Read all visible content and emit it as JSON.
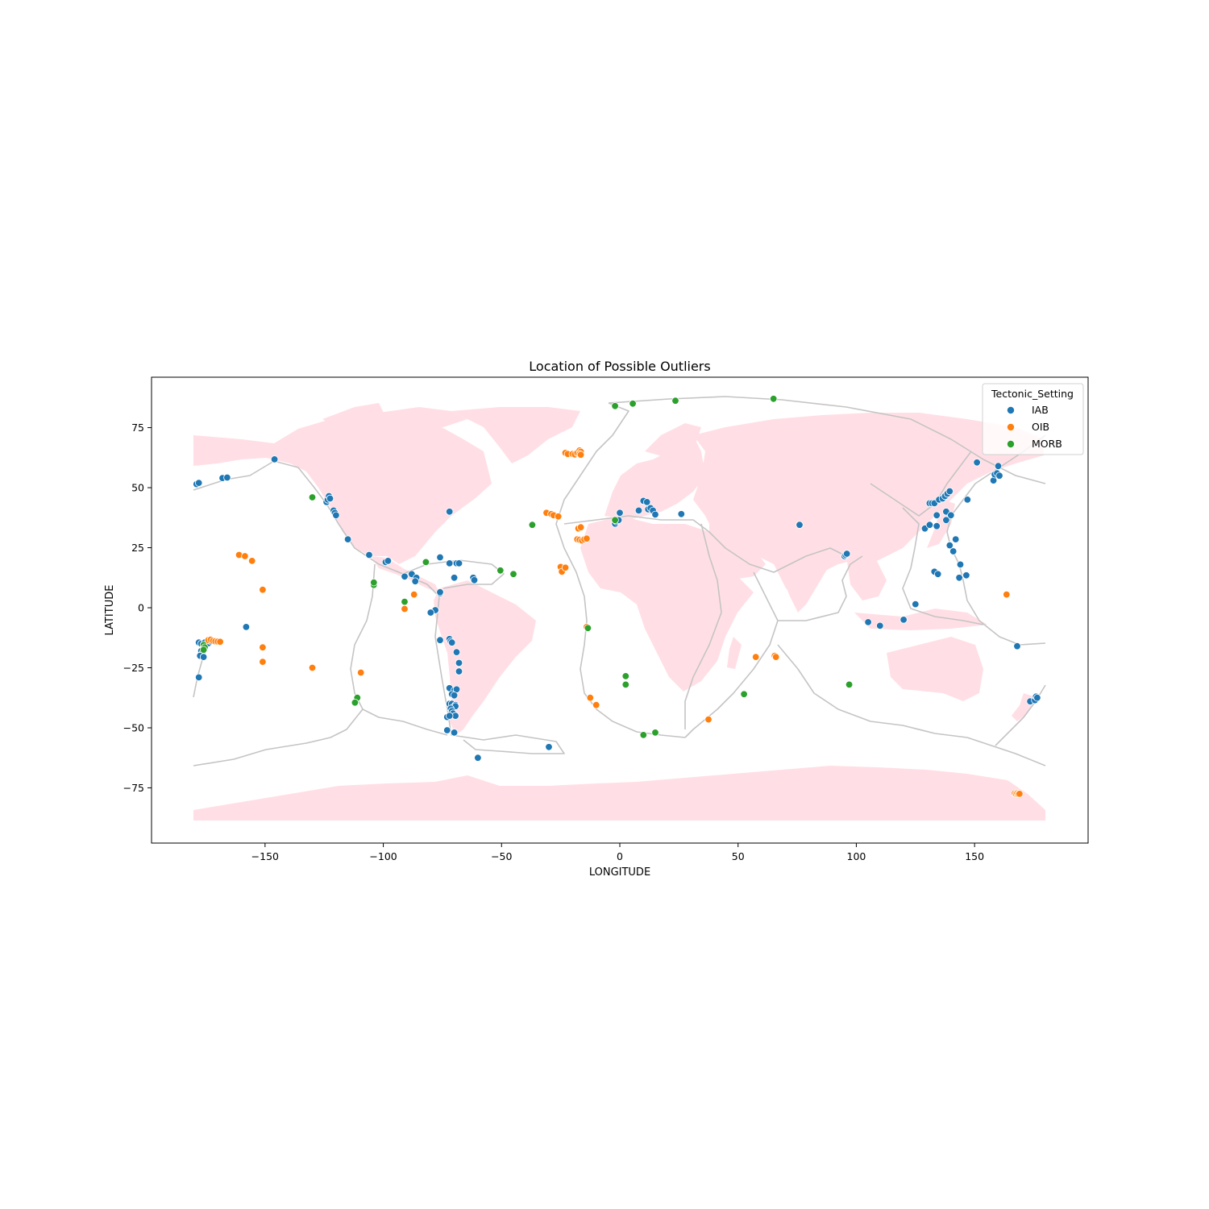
{
  "chart_data": {
    "type": "scatter",
    "title": "Location of Possible Outliers",
    "xlabel": "LONGITUDE",
    "ylabel": "LATITUDE",
    "xlim": [
      -198,
      198
    ],
    "ylim": [
      -98,
      96
    ],
    "xticks": [
      -150,
      -100,
      -50,
      0,
      50,
      100,
      150
    ],
    "yticks": [
      -75,
      -50,
      -25,
      0,
      25,
      50,
      75
    ],
    "xtick_labels": [
      "−150",
      "−100",
      "−50",
      "0",
      "50",
      "100",
      "150"
    ],
    "ytick_labels": [
      "−75",
      "−50",
      "−25",
      "0",
      "25",
      "50",
      "75"
    ],
    "grid": false,
    "legend": {
      "title": "Tectonic_Setting",
      "placement": "upper-right",
      "entries": [
        "IAB",
        "OIB",
        "MORB"
      ]
    },
    "colors": {
      "IAB": "#1f77b4",
      "OIB": "#ff7f0e",
      "MORB": "#2ca02c",
      "land": "#ffdfe5",
      "plate_boundaries": "#c4c4c4"
    },
    "series": [
      {
        "name": "IAB",
        "points": [
          [
            -179,
            51.5
          ],
          [
            -178,
            52
          ],
          [
            -168,
            54
          ],
          [
            -166,
            54.2
          ],
          [
            -146,
            61.8
          ],
          [
            -124,
            44
          ],
          [
            -123.5,
            45
          ],
          [
            -123,
            46.5
          ],
          [
            -122.5,
            45.5
          ],
          [
            -121,
            40.5
          ],
          [
            -120.5,
            39.5
          ],
          [
            -120,
            38.5
          ],
          [
            -115,
            28.5
          ],
          [
            -106,
            22
          ],
          [
            -99,
            19
          ],
          [
            -98,
            19.5
          ],
          [
            -91,
            13
          ],
          [
            -88,
            14
          ],
          [
            -86,
            12.5
          ],
          [
            -86.5,
            11
          ],
          [
            -76,
            21
          ],
          [
            -72,
            18.5
          ],
          [
            -69,
            18.5
          ],
          [
            -68,
            18.5
          ],
          [
            -62,
            12.5
          ],
          [
            -61.5,
            11.5
          ],
          [
            -70,
            12.5
          ],
          [
            -72,
            40
          ],
          [
            -78,
            -1
          ],
          [
            -80,
            -2
          ],
          [
            -76,
            6
          ],
          [
            -76,
            6.5
          ],
          [
            -76,
            -13.5
          ],
          [
            -72,
            -13
          ],
          [
            -71.5,
            -14
          ],
          [
            -71,
            -14.5
          ],
          [
            -69,
            -18.5
          ],
          [
            -68,
            -23
          ],
          [
            -68,
            -26.5
          ],
          [
            -72,
            -33.5
          ],
          [
            -70,
            -34.5
          ],
          [
            -69,
            -34
          ],
          [
            -71,
            -36
          ],
          [
            -70,
            -36.5
          ],
          [
            -72,
            -40
          ],
          [
            -71,
            -40
          ],
          [
            -69.5,
            -40.5
          ],
          [
            -70.5,
            -41.5
          ],
          [
            -69.5,
            -41
          ],
          [
            -71.5,
            -42
          ],
          [
            -71,
            -43
          ],
          [
            -70.5,
            -44
          ],
          [
            -69.5,
            -45
          ],
          [
            -73,
            -45.5
          ],
          [
            -72,
            -45
          ],
          [
            -73,
            -51
          ],
          [
            -70,
            -52
          ],
          [
            -60,
            -62.5
          ],
          [
            -30,
            -58
          ],
          [
            -158,
            -8
          ],
          [
            -178,
            -14.5
          ],
          [
            -177,
            -15
          ],
          [
            -176,
            -15.5
          ],
          [
            -175.5,
            -14.5
          ],
          [
            -174,
            -14.8
          ],
          [
            -173,
            -14
          ],
          [
            -177,
            -18
          ],
          [
            -176.5,
            -19
          ],
          [
            -177.5,
            -20
          ],
          [
            -176,
            -20.5
          ],
          [
            -178,
            -29
          ],
          [
            -2,
            35
          ],
          [
            -1.5,
            36
          ],
          [
            -0.5,
            36.5
          ],
          [
            0,
            39.5
          ],
          [
            8,
            40.5
          ],
          [
            10,
            44.5
          ],
          [
            11.5,
            44
          ],
          [
            12,
            41
          ],
          [
            13,
            41.5
          ],
          [
            14,
            40.5
          ],
          [
            15,
            38.8
          ],
          [
            26,
            39
          ],
          [
            76,
            34.5
          ],
          [
            95,
            21.5
          ],
          [
            95.5,
            22
          ],
          [
            96,
            22.5
          ],
          [
            105,
            -6
          ],
          [
            110,
            -7.5
          ],
          [
            120,
            -5
          ],
          [
            125,
            1.5
          ],
          [
            129,
            33
          ],
          [
            131,
            34.5
          ],
          [
            131,
            43.5
          ],
          [
            132,
            43.5
          ],
          [
            133,
            43.5
          ],
          [
            134,
            34
          ],
          [
            134,
            38.5
          ],
          [
            135,
            45
          ],
          [
            136.5,
            45.5
          ],
          [
            137.5,
            46.5
          ],
          [
            138.5,
            47.5
          ],
          [
            139.5,
            48.5
          ],
          [
            138,
            40
          ],
          [
            138,
            36.5
          ],
          [
            140,
            38.5
          ],
          [
            142,
            28.5
          ],
          [
            139.5,
            26
          ],
          [
            141,
            23.5
          ],
          [
            144,
            18
          ],
          [
            133,
            15
          ],
          [
            134.5,
            14
          ],
          [
            143.5,
            12.5
          ],
          [
            146.5,
            13.5
          ],
          [
            147,
            45
          ],
          [
            151,
            60.5
          ],
          [
            158,
            53
          ],
          [
            158.5,
            55.5
          ],
          [
            159.5,
            56
          ],
          [
            160,
            59
          ],
          [
            160.5,
            55
          ],
          [
            168,
            -16
          ],
          [
            173.5,
            -39
          ],
          [
            175.5,
            -38.5
          ],
          [
            176,
            -37
          ],
          [
            176.5,
            -37.5
          ]
        ]
      },
      {
        "name": "OIB",
        "points": [
          [
            -161,
            22
          ],
          [
            -158.5,
            21.5
          ],
          [
            -155.5,
            19.5
          ],
          [
            -151,
            7.5
          ],
          [
            -151,
            -16.5
          ],
          [
            -151,
            -22.5
          ],
          [
            -130,
            -25
          ],
          [
            -109.5,
            -27
          ],
          [
            -91,
            -0.5
          ],
          [
            -87,
            5.5
          ],
          [
            -174,
            -13.5
          ],
          [
            -173,
            -13.3
          ],
          [
            -172,
            -13.8
          ],
          [
            -171,
            -14
          ],
          [
            -170,
            -14.1
          ],
          [
            -169,
            -14.2
          ],
          [
            -31,
            39.5
          ],
          [
            -29,
            39
          ],
          [
            -28,
            38.5
          ],
          [
            -26,
            38
          ],
          [
            -25,
            17
          ],
          [
            -24.5,
            15
          ],
          [
            -23,
            16.7
          ],
          [
            -23,
            64.5
          ],
          [
            -22,
            64
          ],
          [
            -20,
            64
          ],
          [
            -19,
            63.8
          ],
          [
            -18,
            64.5
          ],
          [
            -17,
            65.5
          ],
          [
            -16.5,
            65
          ],
          [
            -17,
            64
          ],
          [
            -16.5,
            63.7
          ],
          [
            -17.5,
            33
          ],
          [
            -16.5,
            33.5
          ],
          [
            -18,
            28.5
          ],
          [
            -17,
            28.3
          ],
          [
            -16,
            28
          ],
          [
            -15,
            28.5
          ],
          [
            -14,
            28.8
          ],
          [
            -14,
            -8
          ],
          [
            -12.5,
            -37.5
          ],
          [
            -10,
            -40.5
          ],
          [
            37.5,
            -46.5
          ],
          [
            57.5,
            -20.5
          ],
          [
            65.5,
            -20
          ],
          [
            66,
            -20.5
          ],
          [
            163.5,
            5.5
          ],
          [
            167,
            -77.3
          ],
          [
            167.5,
            -77.5
          ],
          [
            168,
            -77.3
          ],
          [
            168.5,
            -77.6
          ],
          [
            169,
            -77.5
          ]
        ]
      },
      {
        "name": "MORB",
        "points": [
          [
            -2,
            84
          ],
          [
            5.5,
            85
          ],
          [
            23.5,
            86.2
          ],
          [
            65,
            87
          ],
          [
            -130,
            46
          ],
          [
            -104,
            9.5
          ],
          [
            -104,
            10.5
          ],
          [
            -111,
            -37.5
          ],
          [
            -112,
            -39.5
          ],
          [
            -91,
            2.5
          ],
          [
            -82,
            19
          ],
          [
            -37,
            34.5
          ],
          [
            -50.5,
            15.5
          ],
          [
            -45,
            14
          ],
          [
            -13.5,
            -8.5
          ],
          [
            -2,
            36.5
          ],
          [
            2.5,
            -28.5
          ],
          [
            2.5,
            -32
          ],
          [
            10,
            -53
          ],
          [
            15,
            -52
          ],
          [
            52.5,
            -36
          ],
          [
            97,
            -32
          ],
          [
            -176,
            -15.5
          ],
          [
            -175.5,
            -16.5
          ],
          [
            -176,
            -17.5
          ]
        ]
      }
    ]
  }
}
